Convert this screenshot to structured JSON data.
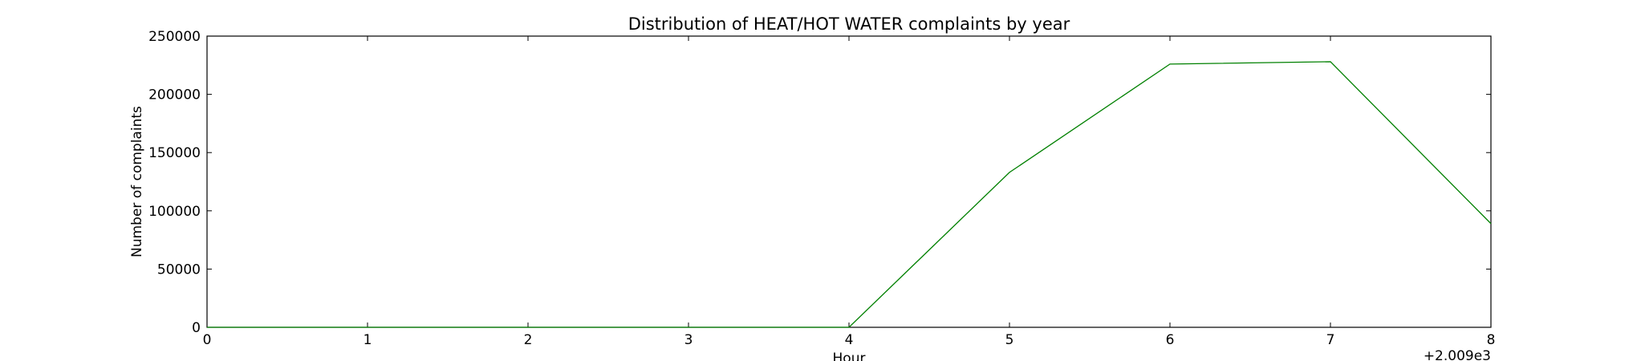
{
  "chart_data": {
    "type": "line",
    "title": "Distribution of  HEAT/HOT WATER complaints by year",
    "xlabel": "Hour",
    "ylabel": "Number of complaints",
    "xlim": [
      0,
      8
    ],
    "ylim": [
      0,
      250000
    ],
    "x_offset_label": "+2.009e3",
    "xticks": [
      0,
      1,
      2,
      3,
      4,
      5,
      6,
      7,
      8
    ],
    "xtick_labels": [
      "0",
      "1",
      "2",
      "3",
      "4",
      "5",
      "6",
      "7",
      "8"
    ],
    "yticks": [
      0,
      50000,
      100000,
      150000,
      200000,
      250000
    ],
    "ytick_labels": [
      "0",
      "50000",
      "100000",
      "150000",
      "200000",
      "250000"
    ],
    "grid": false,
    "legend": "none",
    "series": [
      {
        "color": "#008000",
        "x": [
          0,
          1,
          2,
          3,
          4,
          5,
          6,
          7,
          8
        ],
        "values": [
          0,
          0,
          0,
          0,
          0,
          133000,
          226000,
          228000,
          89000
        ]
      }
    ]
  }
}
